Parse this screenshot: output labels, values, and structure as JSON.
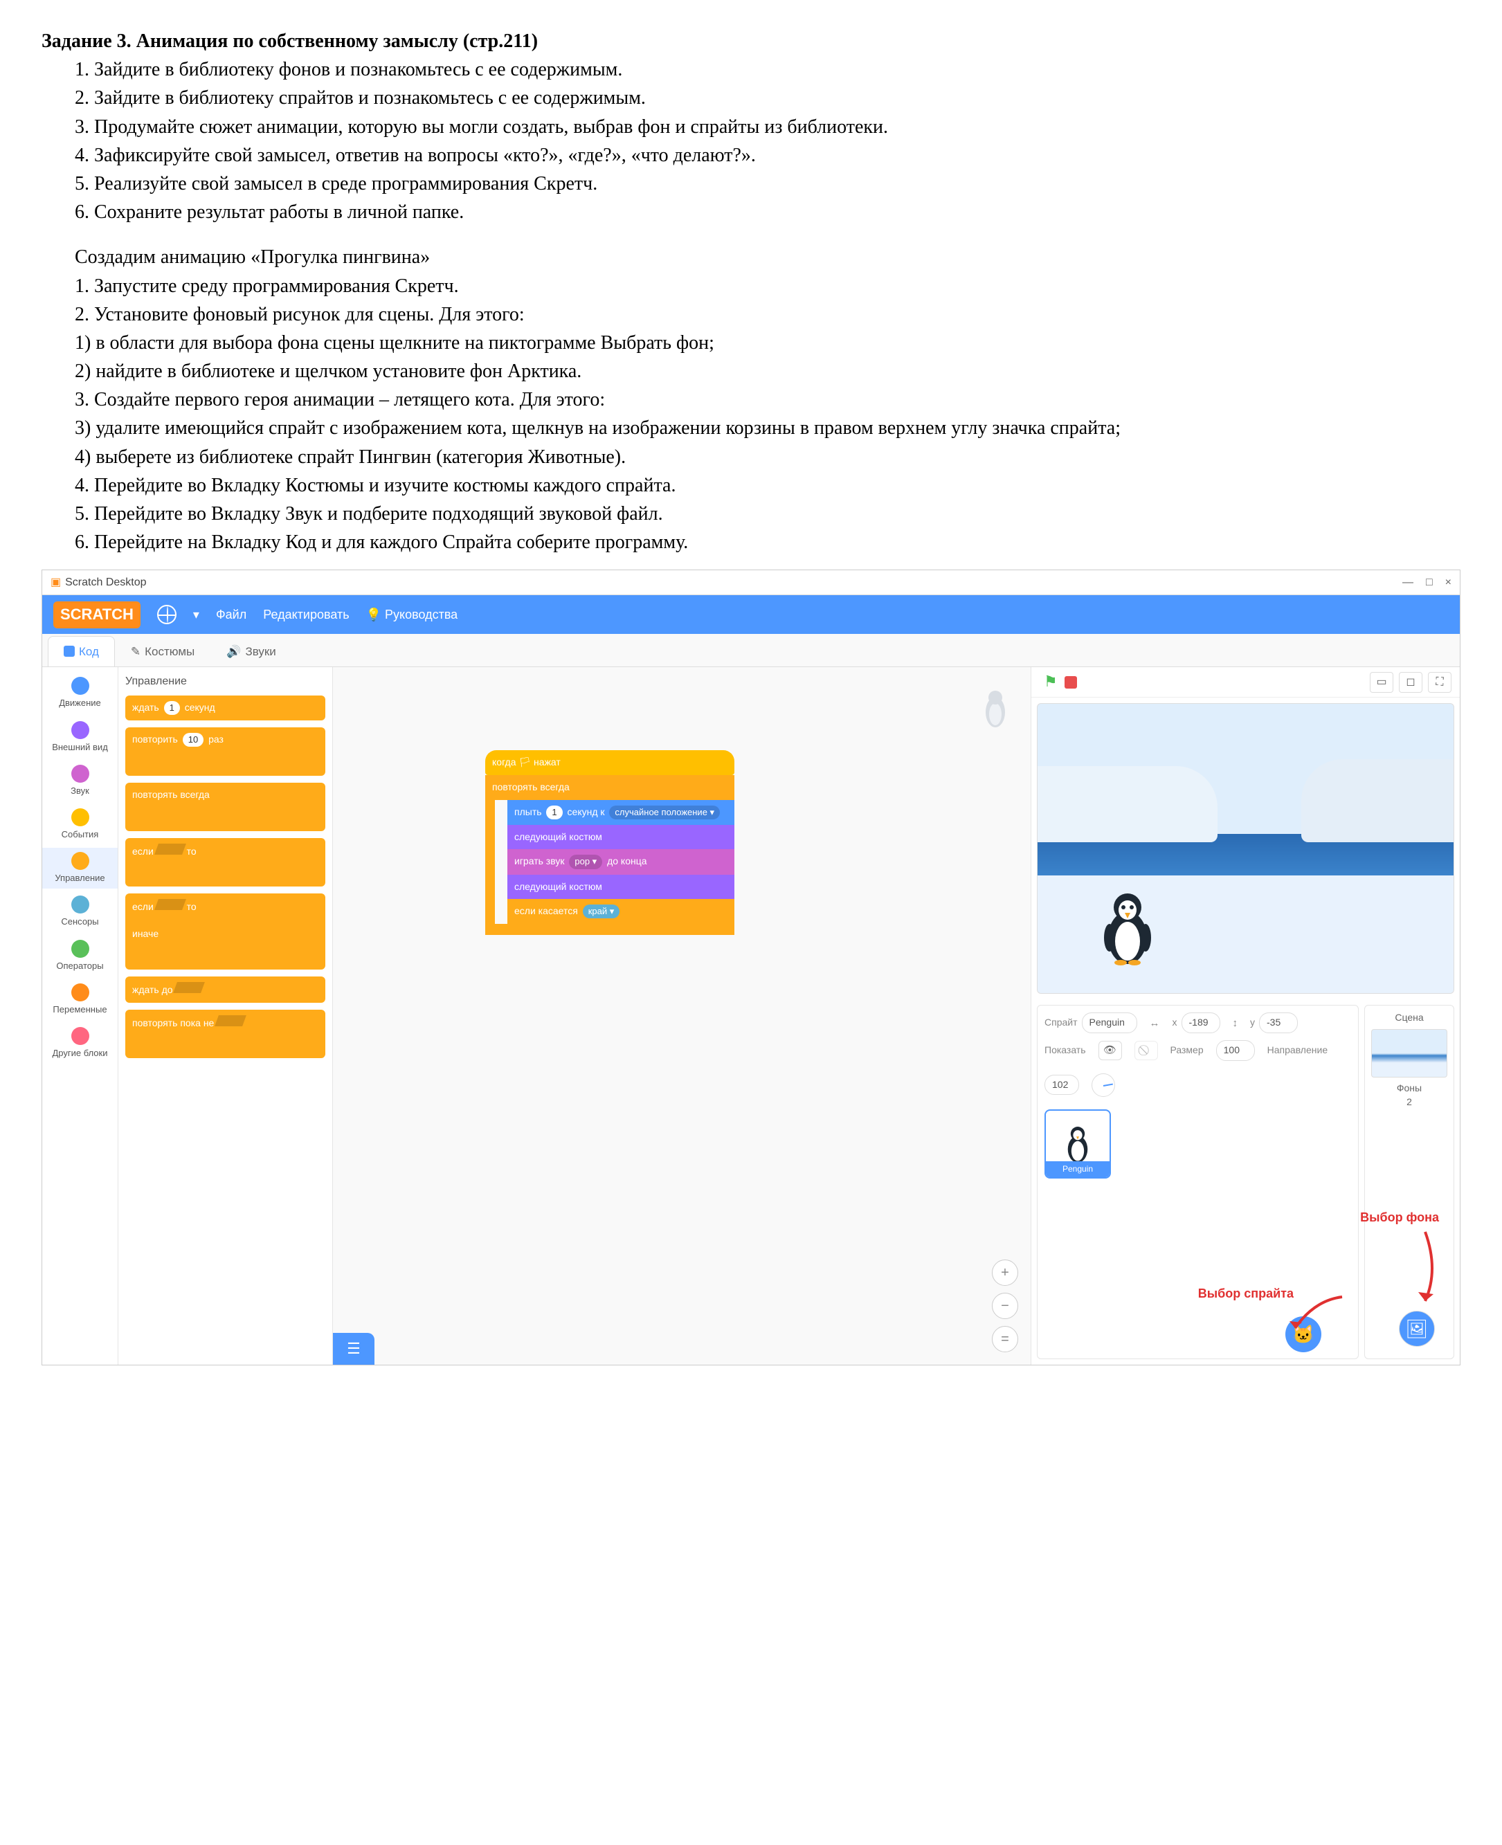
{
  "doc": {
    "title": "Задание 3. Анимация по собственному замыслу (стр.211)",
    "list1": {
      "i1": "1.   Зайдите в библиотеку фонов и познакомьтесь с ее содержимым.",
      "i2": "2.   Зайдите в библиотеку спрайтов и познакомьтесь с ее содержимым.",
      "i3": "3.   Продумайте сюжет анимации, которую вы могли создать, выбрав фон и спрайты из библиотеки.",
      "i4": "4.   Зафиксируйте свой замысел, ответив на вопросы «кто?», «где?», «что делают?».",
      "i5": "5.   Реализуйте свой замысел в среде программирования Скретч.",
      "i6": "6.   Сохраните результат работы в личной папке."
    },
    "mid": "Создадим анимацию «Прогулка пингвина»",
    "list2": {
      "i1": "1.   Запустите среду программирования Скретч.",
      "i2": "2.   Установите фоновый рисунок для сцены. Для этого:",
      "s1": "1)   в области для выбора фона сцены щелкните на пиктограмме Выбрать фон;",
      "s2": "2)   найдите в библиотеке и щелчком установите фон Арктика.",
      "i3": "3.   Создайте первого героя анимации – летящего кота. Для этого:",
      "s3": "3)   удалите имеющийся спрайт с изображением кота, щелкнув на изображении корзины в правом верхнем углу значка спрайта;",
      "s4": "4)   выберете из библиотеке спрайт Пингвин (категория Животные).",
      "i4": "4.   Перейдите во Вкладку Костюмы и изучите костюмы каждого спрайта.",
      "i5": "5.   Перейдите во Вкладку Звук и подберите подходящий звуковой файл.",
      "i6": "6.   Перейдите на Вкладку Код и для каждого Спрайта соберите программу."
    }
  },
  "scratch": {
    "titlebar": {
      "app": "Scratch Desktop",
      "min": "—",
      "max": "□",
      "close": "×"
    },
    "menu": {
      "logo": "SCRATCH",
      "file": "Файл",
      "edit": "Редактировать",
      "tutorials": "Руководства"
    },
    "tabs": {
      "code": "Код",
      "costumes": "Костюмы",
      "sounds": "Звуки"
    },
    "categories": [
      {
        "label": "Движение",
        "color": "#4c97ff"
      },
      {
        "label": "Внешний вид",
        "color": "#9966ff"
      },
      {
        "label": "Звук",
        "color": "#cf63cf"
      },
      {
        "label": "События",
        "color": "#ffbf00"
      },
      {
        "label": "Управление",
        "color": "#ffab19",
        "selected": true
      },
      {
        "label": "Сенсоры",
        "color": "#5cb1d6"
      },
      {
        "label": "Операторы",
        "color": "#59c059"
      },
      {
        "label": "Переменные",
        "color": "#ff8c1a"
      },
      {
        "label": "Другие блоки",
        "color": "#ff6680"
      }
    ],
    "palette": {
      "title": "Управление",
      "wait": {
        "label": "ждать",
        "val": "1",
        "suffix": "секунд"
      },
      "repeat": {
        "label": "повторить",
        "val": "10",
        "suffix": "раз"
      },
      "forever": "повторять всегда",
      "if": {
        "label": "если",
        "suffix": "то"
      },
      "ifelse": {
        "label": "если",
        "mid": "то",
        "else_": "иначе"
      },
      "waituntil": "ждать до",
      "repeatuntil": "повторять пока не"
    },
    "script": {
      "hat": "когда 🏳 нажат",
      "forever": "повторять всегда",
      "glide": {
        "a": "плыть",
        "val": "1",
        "b": "секунд к",
        "opt": "случайное положение ▾"
      },
      "next1": "следующий костюм",
      "play": {
        "a": "играть звук",
        "opt": "pop ▾",
        "b": "до конца"
      },
      "next2": "следующий костюм",
      "iftouch": {
        "a": "если касается",
        "opt": "край ▾"
      }
    },
    "spriteInfo": {
      "spriteLabel": "Спрайт",
      "name": "Penguin",
      "xLabel": "x",
      "x": "-189",
      "yLabel": "y",
      "y": "-35",
      "showLabel": "Показать",
      "sizeLabel": "Размер",
      "size": "100",
      "dirLabel": "Направление",
      "dir": "102"
    },
    "thumb": {
      "name": "Penguin"
    },
    "stageThumb": {
      "title": "Сцена",
      "backdrops": "Фоны",
      "count": "2"
    },
    "anno": {
      "sprite": "Выбор спрайта",
      "stage": "Выбор фона"
    },
    "zoom": {
      "in": "+",
      "out": "−",
      "reset": "="
    }
  }
}
